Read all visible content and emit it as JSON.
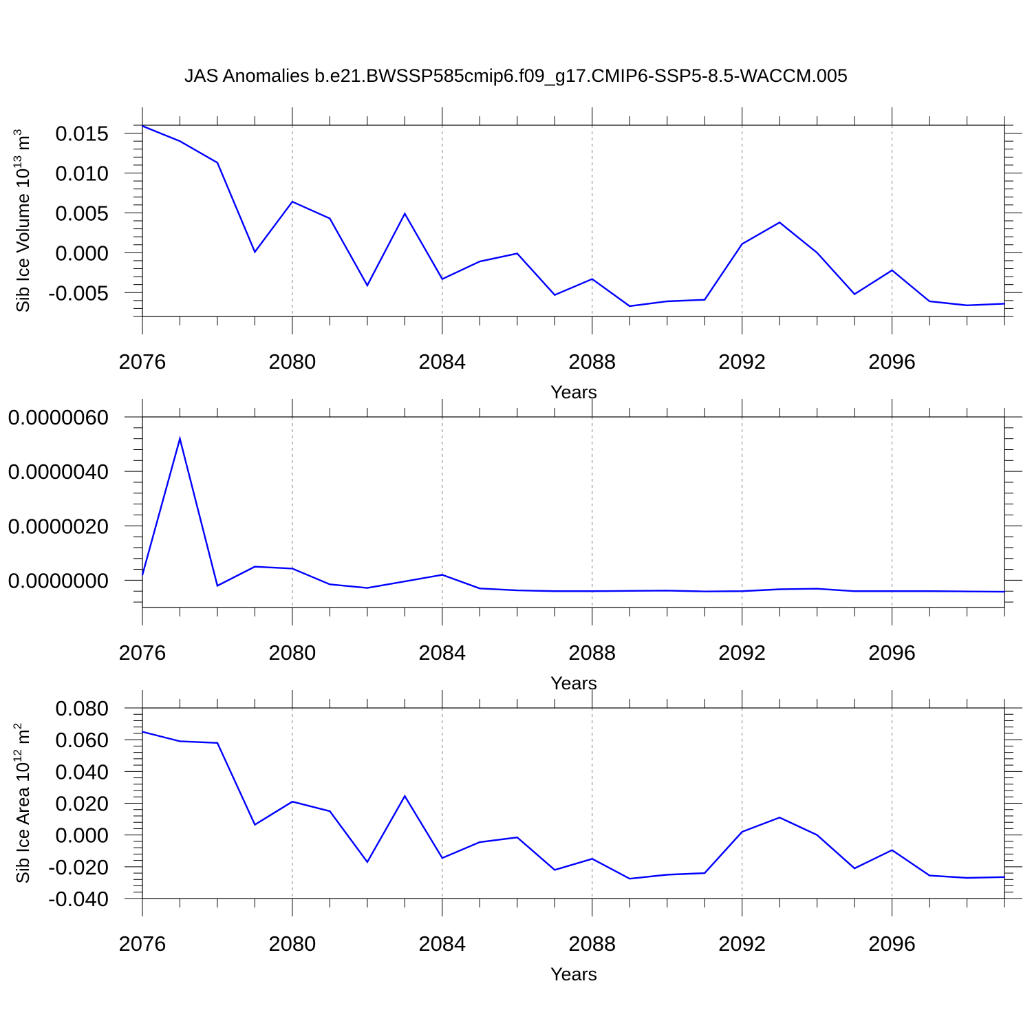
{
  "title": "JAS Anomalies b.e21.BWSSP585cmip6.f09_g17.CMIP6-SSP5-8.5-WACCM.005",
  "colors": {
    "line": "#0000ff",
    "axis": "#000000",
    "grid": "#808080"
  },
  "chart_data": [
    {
      "type": "line",
      "xlabel": "Years",
      "ylabel_main": "Sib Ice Volume 10",
      "ylabel_exp": "13",
      "ylabel_unit": " m",
      "ylabel_unit_exp": "3",
      "xlim": [
        2076,
        2099
      ],
      "ylim": [
        -0.008,
        0.016
      ],
      "yticks": [
        -0.005,
        0.0,
        0.005,
        0.01,
        0.015
      ],
      "ytick_labels": [
        "-0.005",
        "0.000",
        "0.005",
        "0.010",
        "0.015"
      ],
      "xticks": [
        2076,
        2080,
        2084,
        2088,
        2092,
        2096
      ],
      "xtick_labels": [
        "2076",
        "2080",
        "2084",
        "2088",
        "2092",
        "2096"
      ],
      "grid": "vertical dashed at major x ticks",
      "x": [
        2076,
        2077,
        2078,
        2079,
        2080,
        2081,
        2082,
        2083,
        2084,
        2085,
        2086,
        2087,
        2088,
        2089,
        2090,
        2091,
        2092,
        2093,
        2094,
        2095,
        2096,
        2097,
        2098,
        2099
      ],
      "values": [
        0.0159,
        0.014,
        0.0113,
        0.0001,
        0.0064,
        0.0043,
        -0.0041,
        0.0049,
        -0.0033,
        -0.0011,
        -0.0001,
        -0.0053,
        -0.0033,
        -0.0067,
        -0.0061,
        -0.0059,
        0.0011,
        0.0038,
        0.0,
        -0.0052,
        -0.0022,
        -0.0061,
        -0.0066,
        -0.0064
      ]
    },
    {
      "type": "line",
      "xlabel": "Years",
      "ylabel_main": "",
      "ylabel_exp": "",
      "ylabel_unit": "",
      "ylabel_unit_exp": "",
      "xlim": [
        2076,
        2099
      ],
      "ylim": [
        -1e-06,
        6e-06
      ],
      "yticks": [
        0.0,
        2e-06,
        4e-06,
        6e-06
      ],
      "ytick_labels": [
        "0.0000000",
        "0.0000020",
        "0.0000040",
        "0.0000060"
      ],
      "xticks": [
        2076,
        2080,
        2084,
        2088,
        2092,
        2096
      ],
      "xtick_labels": [
        "2076",
        "2080",
        "2084",
        "2088",
        "2092",
        "2096"
      ],
      "grid": "vertical dashed at major x ticks",
      "x": [
        2076,
        2077,
        2078,
        2079,
        2080,
        2081,
        2082,
        2083,
        2084,
        2085,
        2086,
        2087,
        2088,
        2089,
        2090,
        2091,
        2092,
        2093,
        2094,
        2095,
        2096,
        2097,
        2098,
        2099
      ],
      "values": [
        2e-07,
        5.2e-06,
        -2e-07,
        5e-07,
        4.3e-07,
        -1.5e-07,
        -2.8e-07,
        -4e-08,
        2e-07,
        -3e-07,
        -3.7e-07,
        -4e-07,
        -4e-07,
        -3.9e-07,
        -3.8e-07,
        -4.1e-07,
        -4e-07,
        -3.3e-07,
        -3.1e-07,
        -4e-07,
        -4e-07,
        -4e-07,
        -4.1e-07,
        -4.2e-07
      ]
    },
    {
      "type": "line",
      "xlabel": "Years",
      "ylabel_main": "Sib Ice Area 10",
      "ylabel_exp": "12",
      "ylabel_unit": " m",
      "ylabel_unit_exp": "2",
      "xlim": [
        2076,
        2099
      ],
      "ylim": [
        -0.04,
        0.08
      ],
      "yticks": [
        -0.04,
        -0.02,
        0.0,
        0.02,
        0.04,
        0.06,
        0.08
      ],
      "ytick_labels": [
        "-0.040",
        "-0.020",
        "0.000",
        "0.020",
        "0.040",
        "0.060",
        "0.080"
      ],
      "xticks": [
        2076,
        2080,
        2084,
        2088,
        2092,
        2096
      ],
      "xtick_labels": [
        "2076",
        "2080",
        "2084",
        "2088",
        "2092",
        "2096"
      ],
      "grid": "vertical dashed at major x ticks",
      "x": [
        2076,
        2077,
        2078,
        2079,
        2080,
        2081,
        2082,
        2083,
        2084,
        2085,
        2086,
        2087,
        2088,
        2089,
        2090,
        2091,
        2092,
        2093,
        2094,
        2095,
        2096,
        2097,
        2098,
        2099
      ],
      "values": [
        0.065,
        0.059,
        0.058,
        0.0065,
        0.021,
        0.015,
        -0.017,
        0.0245,
        -0.0145,
        -0.0045,
        -0.0015,
        -0.022,
        -0.015,
        -0.0275,
        -0.025,
        -0.024,
        0.002,
        0.011,
        0.0,
        -0.021,
        -0.0095,
        -0.0255,
        -0.027,
        -0.0265
      ]
    }
  ]
}
